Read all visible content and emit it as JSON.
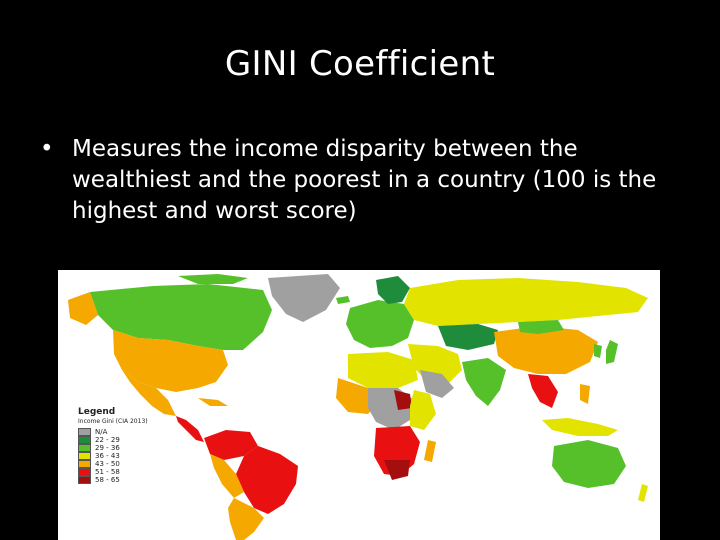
{
  "slide": {
    "title": "GINI Coefficient",
    "bullet": "Measures the income disparity between the wealthiest and the poorest in a country (100 is the highest and worst score)"
  },
  "map": {
    "legend": {
      "title": "Legend",
      "subtitle": "Income Gini (CIA 2013)",
      "items": [
        {
          "label": "N/A",
          "color": "#a0a0a0"
        },
        {
          "label": "22 - 29",
          "color": "#1e8c3a"
        },
        {
          "label": "29 - 36",
          "color": "#55c02a"
        },
        {
          "label": "36 - 43",
          "color": "#e3e300"
        },
        {
          "label": "43 - 50",
          "color": "#f5a800"
        },
        {
          "label": "51 - 58",
          "color": "#e81010"
        },
        {
          "label": "58 - 65",
          "color": "#a50e0e"
        }
      ]
    },
    "colors": {
      "ocean": "#ffffff",
      "na": "#a0a0a0",
      "low": "#1e8c3a",
      "lowmid": "#55c02a",
      "mid": "#e3e300",
      "midhigh": "#f5a800",
      "high": "#e81010",
      "veryhigh": "#a50e0e"
    }
  }
}
